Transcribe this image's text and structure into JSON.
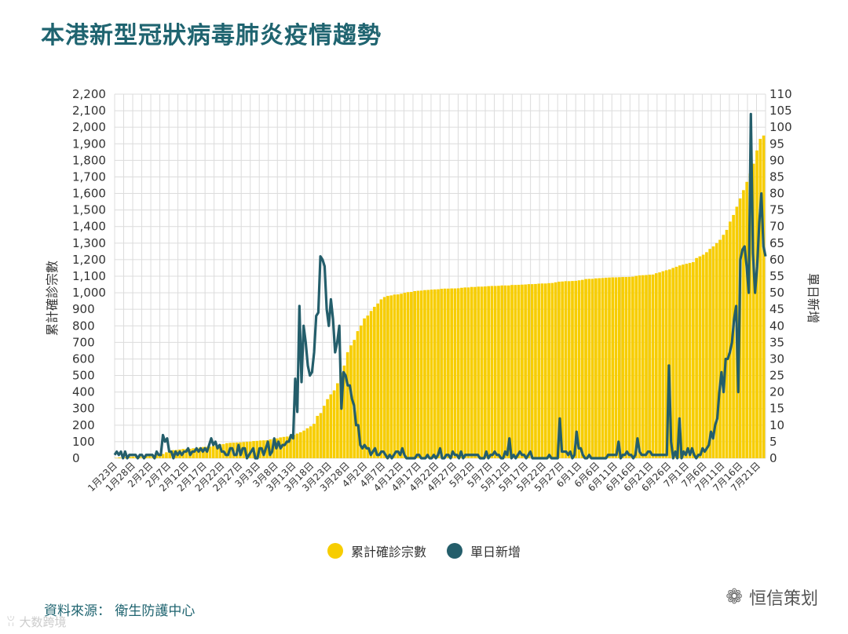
{
  "title": "本港新型冠狀病毒肺炎疫情趨勢",
  "source": "資料來源： 衛生防護中心",
  "watermark": {
    "brand": "恒信策划",
    "corner": "ꂨ 大数跨境"
  },
  "colors": {
    "bar": "#f7cd00",
    "line": "#245e6b",
    "grid": "#dcdcdc"
  },
  "chart_data": {
    "type": "bar",
    "title": "本港新型冠狀病毒肺炎疫情趨勢",
    "left_axis": {
      "label": "累計確診宗數",
      "range": [
        0,
        2200
      ],
      "ticks": [
        0,
        100,
        200,
        300,
        400,
        500,
        600,
        700,
        800,
        900,
        1000,
        1100,
        1200,
        1300,
        1400,
        1500,
        1600,
        1700,
        1800,
        1900,
        2000,
        2100,
        2200
      ]
    },
    "right_axis": {
      "label": "單日新增",
      "range": [
        0,
        110
      ],
      "ticks": [
        0,
        5,
        10,
        15,
        20,
        25,
        30,
        35,
        40,
        45,
        50,
        55,
        60,
        65,
        70,
        75,
        80,
        85,
        90,
        95,
        100,
        105,
        110
      ]
    },
    "x_ticks": [
      "1月23日",
      "1月28日",
      "2月2日",
      "2月7日",
      "2月12日",
      "2月17日",
      "2月22日",
      "2月27日",
      "3月3日",
      "3月8日",
      "3月13日",
      "3月18日",
      "3月23日",
      "3月28日",
      "4月2日",
      "4月7日",
      "4月12日",
      "4月17日",
      "4月22日",
      "4月27日",
      "5月2日",
      "5月7日",
      "5月12日",
      "5月17日",
      "5月22日",
      "5月27日",
      "6月1日",
      "6月6日",
      "6月11日",
      "6月16日",
      "6月21日",
      "6月26日",
      "7月1日",
      "7月6日",
      "7月11日",
      "7月16日",
      "7月21日"
    ],
    "legend": [
      "累計確診宗數",
      "單日新增"
    ],
    "legend_position": "bottom",
    "series": [
      {
        "name": "累計確診宗數",
        "type": "bar",
        "axis": "left",
        "values": [
          2,
          5,
          8,
          8,
          10,
          10,
          12,
          13,
          15,
          15,
          17,
          18,
          21,
          24,
          26,
          36,
          42,
          49,
          50,
          53,
          56,
          56,
          57,
          60,
          62,
          65,
          68,
          69,
          70,
          74,
          81,
          84,
          85,
          91,
          93,
          94,
          95,
          96,
          98,
          100,
          101,
          104,
          105,
          107,
          108,
          109,
          114,
          115,
          120,
          126,
          129,
          131,
          137,
          141,
          149,
          157,
          167,
          181,
          193,
          208,
          256,
          273,
          317,
          357,
          386,
          410,
          453,
          518,
          560,
          641,
          682,
          715,
          768,
          802,
          845,
          862,
          890,
          915,
          935,
          960,
          974,
          981,
          984,
          989,
          990,
          994,
          1000,
          1004,
          1005,
          1010,
          1012,
          1013,
          1016,
          1017,
          1019,
          1020,
          1021,
          1024,
          1025,
          1025,
          1026,
          1026,
          1027,
          1030,
          1032,
          1032,
          1035,
          1035,
          1037,
          1037,
          1038,
          1040,
          1041,
          1041,
          1042,
          1044,
          1044,
          1044,
          1047,
          1047,
          1048,
          1049,
          1050,
          1052,
          1052,
          1053,
          1055,
          1056,
          1056,
          1058,
          1059,
          1063,
          1067,
          1068,
          1070,
          1070,
          1071,
          1072,
          1075,
          1078,
          1083,
          1084,
          1084,
          1087,
          1088,
          1089,
          1091,
          1092,
          1093,
          1093,
          1094,
          1095,
          1095,
          1096,
          1097,
          1102,
          1105,
          1106,
          1107,
          1109,
          1110,
          1118,
          1123,
          1130,
          1136,
          1141,
          1150,
          1157,
          1165,
          1170,
          1175,
          1180,
          1185,
          1210,
          1220,
          1230,
          1245,
          1265,
          1280,
          1300,
          1320,
          1350,
          1380,
          1430,
          1470,
          1520,
          1570,
          1620,
          1670,
          1720,
          1780,
          1860,
          1930,
          1950
        ]
      },
      {
        "name": "單日新增",
        "type": "line",
        "axis": "right",
        "values": [
          1,
          2,
          1,
          2,
          0,
          2,
          0,
          1,
          1,
          1,
          1,
          0,
          1,
          1,
          0,
          1,
          1,
          1,
          1,
          0,
          2,
          1,
          1,
          7,
          5,
          6,
          2,
          2,
          0,
          2,
          1,
          2,
          1,
          2,
          2,
          3,
          1,
          2,
          2,
          3,
          2,
          3,
          2,
          3,
          2,
          4,
          6,
          4,
          5,
          3,
          4,
          2,
          2,
          1,
          1,
          3,
          3,
          1,
          1,
          4,
          1,
          3,
          3,
          0,
          1,
          2,
          3,
          0,
          0,
          3,
          3,
          1,
          3,
          5,
          1,
          2,
          6,
          3,
          5,
          3,
          4,
          4,
          5,
          5,
          7,
          6,
          24,
          14,
          46,
          23,
          40,
          35,
          28,
          25,
          26,
          32,
          43,
          44,
          61,
          60,
          58,
          45,
          40,
          48,
          42,
          32,
          35,
          40,
          15,
          26,
          25,
          22,
          22,
          18,
          16,
          10,
          10,
          4,
          3,
          4,
          3,
          3,
          1,
          2,
          3,
          1,
          1,
          2,
          2,
          1,
          0,
          1,
          0,
          1,
          2,
          2,
          1,
          3,
          1,
          0,
          0,
          0,
          0,
          0,
          1,
          1,
          0,
          0,
          0,
          1,
          0,
          0,
          1,
          0,
          1,
          3,
          0,
          0,
          1,
          1,
          0,
          2,
          1,
          1,
          0,
          2,
          0,
          1,
          1,
          1,
          1,
          1,
          1,
          1,
          0,
          0,
          0,
          2,
          0,
          1,
          1,
          2,
          1,
          1,
          0,
          0,
          2,
          1,
          6,
          0,
          1,
          0,
          1,
          2,
          1,
          1,
          0,
          1,
          2,
          0,
          0,
          0,
          0,
          0,
          0,
          0,
          0,
          1,
          0,
          0,
          0,
          0,
          12,
          2,
          2,
          2,
          1,
          2,
          0,
          1,
          8,
          3,
          3,
          1,
          0,
          0,
          1,
          0,
          0,
          0,
          0,
          0,
          0,
          0,
          0,
          1,
          1,
          1,
          1,
          1,
          5,
          0,
          1,
          1,
          2,
          1,
          1,
          0,
          1,
          6,
          2,
          1,
          1,
          1,
          2,
          2,
          1,
          1,
          1,
          1,
          1,
          1,
          1,
          1,
          28,
          5,
          0,
          2,
          0,
          12,
          0,
          2,
          1,
          3,
          1,
          3,
          1,
          0,
          1,
          1,
          3,
          2,
          3,
          4,
          8,
          6,
          10,
          12,
          20,
          26,
          20,
          30,
          30,
          32,
          35,
          42,
          46,
          20,
          60,
          63,
          64,
          58,
          50,
          104,
          62,
          50,
          58,
          71,
          80,
          64,
          61
        ]
      }
    ]
  }
}
